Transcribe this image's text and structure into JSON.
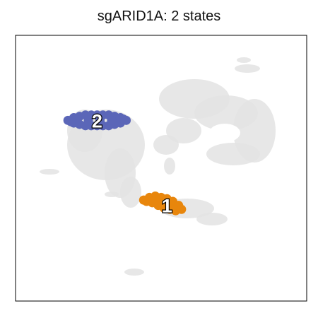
{
  "title": "sgARID1A: 2 states",
  "chart_data": {
    "type": "scatter",
    "title": "sgARID1A: 2 states",
    "xlabel": "",
    "ylabel": "",
    "xlim": [
      0,
      100
    ],
    "ylim": [
      0,
      100
    ],
    "grid": false,
    "legend": "none",
    "background_color": "#e3e3e3",
    "series": [
      {
        "name": "1",
        "label": "1",
        "color": "#e8860c",
        "label_at": [
          52,
          36
        ],
        "points": [
          [
            44,
            38
          ],
          [
            46,
            39
          ],
          [
            48,
            39.5
          ],
          [
            50,
            39
          ],
          [
            52,
            38.5
          ],
          [
            54,
            37.5
          ],
          [
            56,
            36
          ],
          [
            57,
            34.5
          ],
          [
            55,
            34
          ],
          [
            53,
            34.5
          ],
          [
            51,
            35
          ],
          [
            49,
            36
          ],
          [
            47,
            37
          ],
          [
            45,
            37.5
          ],
          [
            50,
            37
          ],
          [
            52,
            36.5
          ],
          [
            54,
            35.5
          ],
          [
            48,
            38
          ],
          [
            46,
            37.8
          ],
          [
            53,
            37
          ]
        ]
      },
      {
        "name": "2",
        "label": "2",
        "color": "#5b66b8",
        "label_at": [
          28,
          68
        ],
        "points": [
          [
            18,
            68
          ],
          [
            20,
            69
          ],
          [
            22,
            69.5
          ],
          [
            24,
            70
          ],
          [
            26,
            70
          ],
          [
            28,
            70
          ],
          [
            30,
            70
          ],
          [
            32,
            70
          ],
          [
            34,
            69.5
          ],
          [
            36,
            69
          ],
          [
            38,
            68
          ],
          [
            36,
            67
          ],
          [
            34,
            66.5
          ],
          [
            32,
            66
          ],
          [
            30,
            66
          ],
          [
            28,
            66
          ],
          [
            26,
            66
          ],
          [
            24,
            66
          ],
          [
            22,
            66.5
          ],
          [
            20,
            67
          ],
          [
            19,
            67.5
          ],
          [
            37,
            68.5
          ],
          [
            29,
            68
          ],
          [
            25,
            68
          ],
          [
            33,
            68
          ]
        ]
      }
    ]
  }
}
